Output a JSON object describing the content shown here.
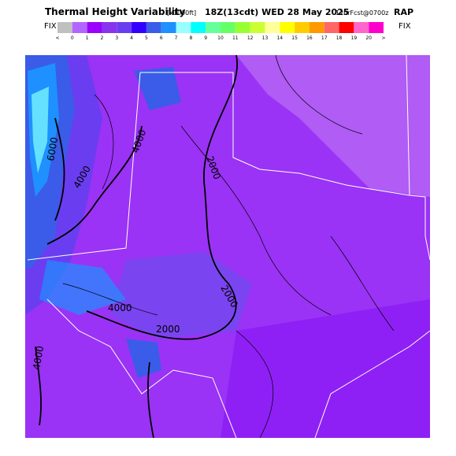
{
  "header": {
    "title": "Thermal Height Variability",
    "units": "[x1000ft]",
    "valid": "18Z(13cdt) WED 28 May 2025",
    "forecast": "12hrFcst@0700z",
    "model": "RAP",
    "fix_left": "FIX",
    "fix_right": "FIX"
  },
  "colorbar": {
    "colors": [
      "#c0c0c0",
      "#b266ff",
      "#9900ff",
      "#8833ee",
      "#6a3ef0",
      "#3300ff",
      "#3a5ce8",
      "#1e90ff",
      "#99ffff",
      "#00ffff",
      "#66ff99",
      "#66ff66",
      "#99ff33",
      "#ccff33",
      "#ffff99",
      "#ffff00",
      "#ffcc00",
      "#ff9900",
      "#ff6666",
      "#ff0000",
      "#ff66cc",
      "#ff00cc"
    ],
    "labels": [
      "<",
      "0",
      "1",
      "2",
      "3",
      "4",
      "5",
      "6",
      "7",
      "8",
      "9",
      "10",
      "11",
      "12",
      "13",
      "14",
      "15",
      "16",
      "17",
      "18",
      "19",
      "20",
      ">"
    ]
  },
  "contour_labels": [
    "6000",
    "4000",
    "4000",
    "2000",
    "2000",
    "2000",
    "4000",
    "4000"
  ]
}
